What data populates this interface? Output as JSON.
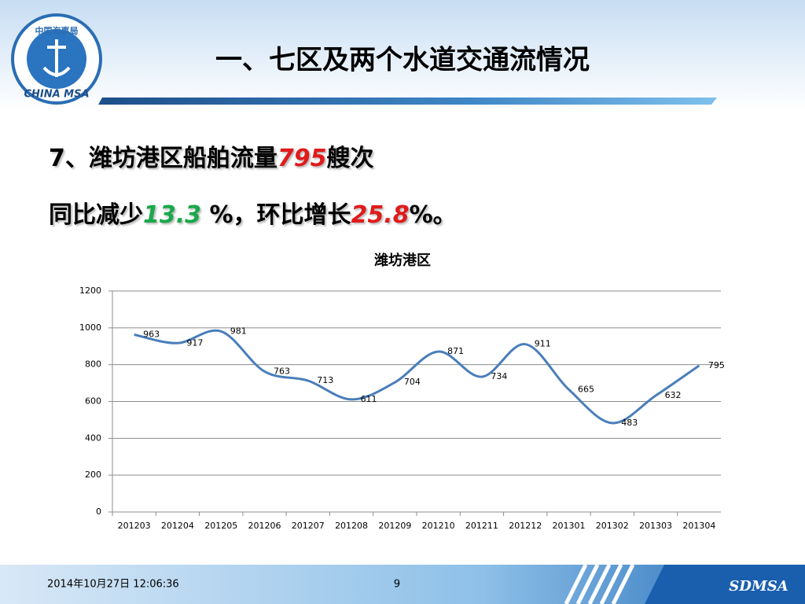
{
  "header": {
    "title": "一、七区及两个水道交通流情况",
    "logo_text": "中国海事局",
    "logo_caption": "CHINA MSA"
  },
  "bullets": [
    {
      "a": "7、潍坊港区船舶流量",
      "b": "795",
      "c": "艘次"
    },
    {
      "a": "同比减少",
      "b": "13.3",
      "c": " %，环比增长",
      "d": "25.8",
      "e": "%。"
    }
  ],
  "chart_data": {
    "type": "line",
    "title": "潍坊港区",
    "categories": [
      "201203",
      "201204",
      "201205",
      "201206",
      "201207",
      "201208",
      "201209",
      "201210",
      "201211",
      "201212",
      "201301",
      "201302",
      "201303",
      "201304"
    ],
    "values": [
      963,
      917,
      981,
      763,
      713,
      611,
      704,
      871,
      734,
      911,
      665,
      483,
      632,
      795
    ],
    "color": "#4a7ebb",
    "ylim": [
      0,
      1200
    ],
    "yticks": [
      0,
      200,
      400,
      600,
      800,
      1000,
      1200
    ],
    "grid": true
  },
  "footer": {
    "date": "2014年10月27日  12:06:36",
    "page": "9",
    "brand": "SDMSA"
  }
}
